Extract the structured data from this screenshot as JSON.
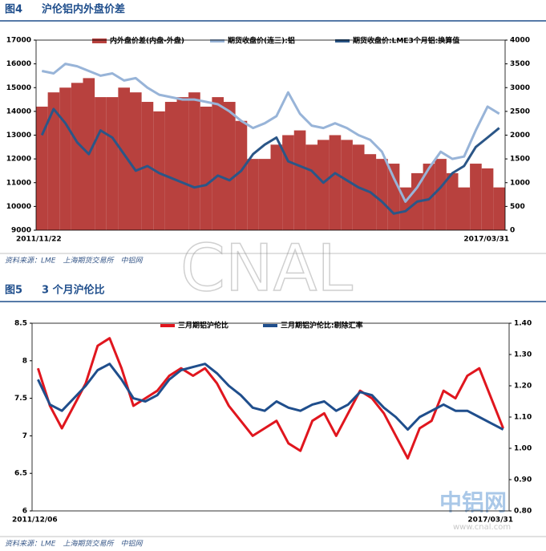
{
  "chart_data": [
    {
      "type": "bar",
      "figure_label": "图4",
      "title": "沪伦铝内外盘价差",
      "source": "资料来源：LME　上海期货交易所　中铝网",
      "categories": [
        "2011/11/22",
        null,
        null,
        null,
        null,
        null,
        null,
        null,
        null,
        null,
        null,
        null,
        null,
        null,
        null,
        null,
        null,
        null,
        null,
        null,
        null,
        null,
        null,
        null,
        null,
        null,
        null,
        null,
        null,
        null,
        null,
        null,
        null,
        null,
        null,
        null,
        null,
        null,
        null,
        "2017/03/31"
      ],
      "ylim": [
        9000,
        17000
      ],
      "yticks": [
        9000,
        10000,
        11000,
        12000,
        13000,
        14000,
        15000,
        16000,
        17000
      ],
      "y2lim": [
        0,
        4000
      ],
      "y2ticks": [
        0,
        500,
        1000,
        1500,
        2000,
        2500,
        3000,
        3500,
        4000
      ],
      "series": [
        {
          "name": "内外盘价差(内盘-外盘)",
          "type": "bar",
          "axis": "y2",
          "color": "#b8413e",
          "values": [
            2600,
            2900,
            3000,
            3100,
            3200,
            2800,
            2800,
            3000,
            2900,
            2700,
            2500,
            2700,
            2800,
            2900,
            2600,
            2800,
            2700,
            2300,
            1500,
            1500,
            1800,
            2000,
            2100,
            1800,
            1900,
            2000,
            1900,
            1800,
            1600,
            1500,
            1400,
            900,
            1200,
            1400,
            1500,
            1200,
            900,
            1400,
            1300,
            900
          ]
        },
        {
          "name": "期货收盘价(连三):铝",
          "type": "line",
          "color": "#98b4d8",
          "values": [
            15700,
            15600,
            16000,
            15900,
            15700,
            15500,
            15600,
            15300,
            15400,
            15000,
            14700,
            14600,
            14500,
            14500,
            14400,
            14300,
            14000,
            13600,
            13300,
            13500,
            13800,
            14800,
            13900,
            13400,
            13300,
            13500,
            13300,
            13000,
            12800,
            12300,
            11200,
            10200,
            10800,
            11600,
            12300,
            12000,
            12100,
            13200,
            14200,
            13900
          ]
        },
        {
          "name": "期货收盘价:LME3个月铝:换算值",
          "type": "line",
          "color": "#2b5687",
          "values": [
            13000,
            14100,
            13500,
            12700,
            12200,
            13200,
            12900,
            12200,
            11500,
            11700,
            11400,
            11200,
            11000,
            10800,
            10900,
            11300,
            11100,
            11500,
            12200,
            12600,
            12900,
            11900,
            11700,
            11500,
            11000,
            11400,
            11100,
            10800,
            10600,
            10200,
            9700,
            9800,
            10200,
            10300,
            10800,
            11400,
            11700,
            12500,
            12900,
            13300
          ]
        }
      ]
    },
    {
      "type": "line",
      "figure_label": "图5",
      "title": "3 个月沪伦比",
      "source": "资料来源：LME　上海期货交易所　中铝网",
      "categories": [
        "2011/12/06",
        null,
        null,
        null,
        null,
        null,
        null,
        null,
        null,
        null,
        null,
        null,
        null,
        null,
        null,
        null,
        null,
        null,
        null,
        null,
        null,
        null,
        null,
        null,
        null,
        null,
        null,
        null,
        null,
        null,
        null,
        null,
        null,
        null,
        null,
        null,
        null,
        null,
        null,
        "2017/03/31"
      ],
      "ylim": [
        6,
        8.5
      ],
      "yticks": [
        6,
        6.5,
        7,
        7.5,
        8,
        8.5
      ],
      "y2lim": [
        0.8,
        1.4
      ],
      "y2ticks": [
        {
          "value": 0.8,
          "label": "0.80"
        },
        {
          "value": 0.9,
          "label": "0.90"
        },
        {
          "value": 1.0,
          "label": "1.00"
        },
        {
          "value": 1.1,
          "label": "1.10"
        },
        {
          "value": 1.2,
          "label": "1.20"
        },
        {
          "value": 1.3,
          "label": "1.30"
        },
        {
          "value": 1.4,
          "label": "1.40"
        }
      ],
      "series": [
        {
          "name": "三月期铝沪伦比",
          "type": "line",
          "color": "#e0161e",
          "values": [
            7.9,
            7.4,
            7.1,
            7.4,
            7.7,
            8.2,
            8.3,
            7.9,
            7.4,
            7.5,
            7.6,
            7.8,
            7.9,
            7.8,
            7.9,
            7.7,
            7.4,
            7.2,
            7.0,
            7.1,
            7.2,
            6.9,
            6.8,
            7.2,
            7.3,
            7.0,
            7.3,
            7.6,
            7.5,
            7.3,
            7.0,
            6.7,
            7.1,
            7.2,
            7.6,
            7.5,
            7.8,
            7.9,
            7.5,
            7.1
          ]
        },
        {
          "name": "三月期铝沪伦比:剔除汇率",
          "type": "line",
          "axis": "y2",
          "color": "#1f4e8c",
          "values": [
            1.22,
            1.14,
            1.12,
            1.16,
            1.2,
            1.25,
            1.27,
            1.22,
            1.16,
            1.15,
            1.17,
            1.22,
            1.25,
            1.26,
            1.27,
            1.24,
            1.2,
            1.17,
            1.13,
            1.12,
            1.15,
            1.13,
            1.12,
            1.14,
            1.15,
            1.12,
            1.14,
            1.18,
            1.17,
            1.13,
            1.1,
            1.06,
            1.1,
            1.12,
            1.14,
            1.12,
            1.12,
            1.1,
            1.08,
            1.06
          ]
        }
      ]
    }
  ],
  "watermark": {
    "text": "CNAL",
    "logo": "中铝网",
    "url": "www.cnal.com"
  }
}
